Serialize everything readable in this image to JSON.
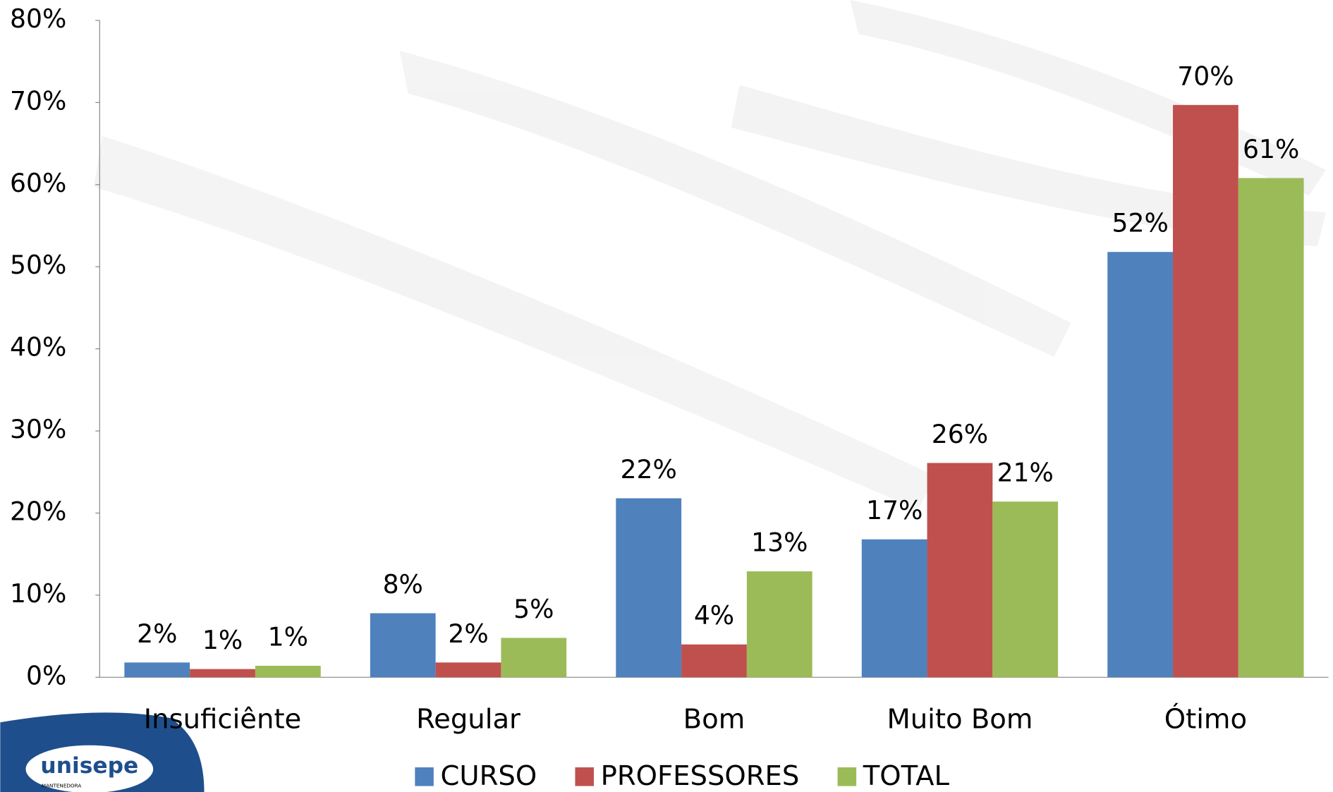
{
  "chart_data": {
    "type": "bar",
    "categories": [
      "Insuficiênte",
      "Regular",
      "Bom",
      "Muito Bom",
      "Ótimo"
    ],
    "series": [
      {
        "name": "CURSO",
        "color": "#4f81bd",
        "values": [
          1.8,
          7.8,
          21.8,
          16.8,
          51.8
        ],
        "value_labels": [
          "2%",
          "8%",
          "22%",
          "17%",
          "52%"
        ]
      },
      {
        "name": "PROFESSORES",
        "color": "#c0504d",
        "values": [
          1.0,
          1.8,
          4.0,
          26.1,
          69.7
        ],
        "value_labels": [
          "1%",
          "2%",
          "4%",
          "26%",
          "70%"
        ]
      },
      {
        "name": "TOTAL",
        "color": "#9bbb59",
        "values": [
          1.4,
          4.8,
          12.9,
          21.4,
          60.8
        ],
        "value_labels": [
          "1%",
          "5%",
          "13%",
          "21%",
          "61%"
        ]
      }
    ],
    "ylim": [
      0,
      80
    ],
    "yticks": [
      {
        "value": 0,
        "label": "0%"
      },
      {
        "value": 10,
        "label": "10%"
      },
      {
        "value": 20,
        "label": "20%"
      },
      {
        "value": 30,
        "label": "30%"
      },
      {
        "value": 40,
        "label": "40%"
      },
      {
        "value": 50,
        "label": "50%"
      },
      {
        "value": 60,
        "label": "60%"
      },
      {
        "value": 70,
        "label": "70%"
      },
      {
        "value": 80,
        "label": "80%"
      }
    ],
    "legend": "bottom",
    "logo": {
      "name": "unisepe",
      "subtitle": "MANTENEDORA"
    }
  }
}
